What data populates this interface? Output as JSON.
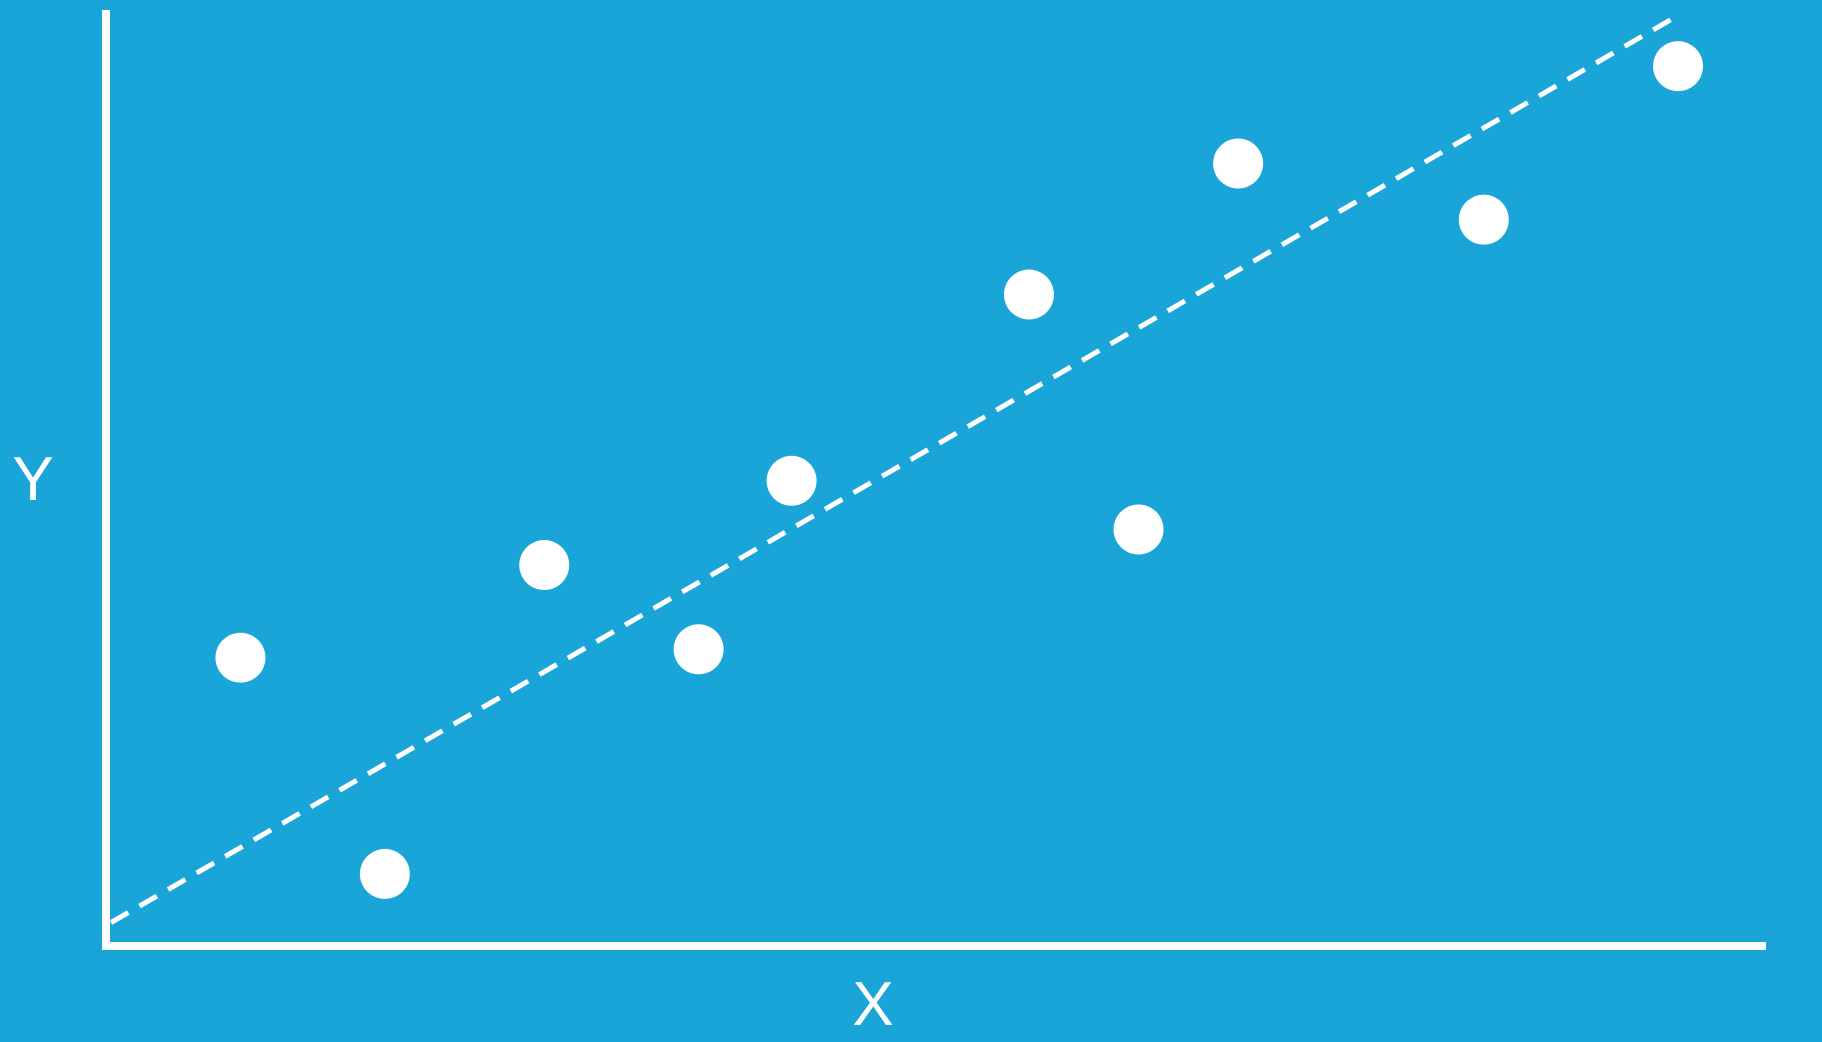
{
  "colors": {
    "background": "#1aa5d9",
    "foreground": "#ffffff"
  },
  "chart_data": {
    "type": "scatter",
    "title": "",
    "xlabel": "X",
    "ylabel": "Y",
    "xlim": [
      0,
      100
    ],
    "ylim": [
      0,
      100
    ],
    "grid": false,
    "legend": "none",
    "points": [
      {
        "x": 8.1,
        "y": 30.8
      },
      {
        "x": 16.8,
        "y": 7.7
      },
      {
        "x": 26.4,
        "y": 40.7
      },
      {
        "x": 35.7,
        "y": 31.7
      },
      {
        "x": 41.3,
        "y": 49.7
      },
      {
        "x": 55.6,
        "y": 69.6
      },
      {
        "x": 62.2,
        "y": 44.5
      },
      {
        "x": 68.2,
        "y": 83.6
      },
      {
        "x": 83.0,
        "y": 77.6
      },
      {
        "x": 94.7,
        "y": 94.0
      }
    ],
    "trendline": {
      "style": "dashed",
      "start": {
        "x": 0.3,
        "y": 2.5
      },
      "end": {
        "x": 94.3,
        "y": 99.0
      }
    }
  }
}
